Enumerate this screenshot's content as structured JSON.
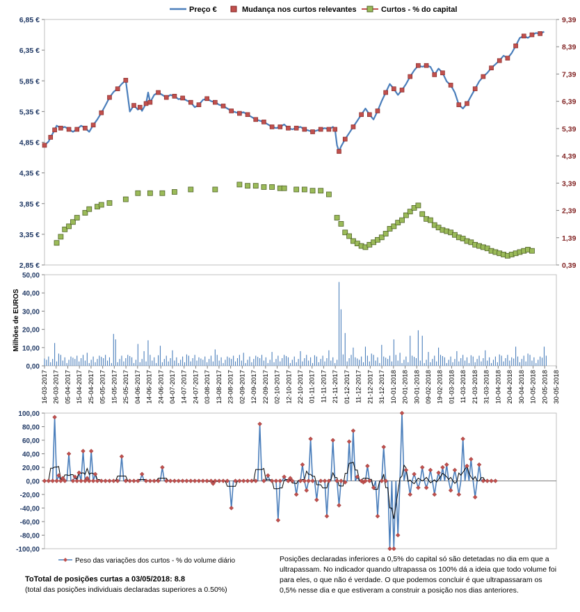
{
  "dates": [
    "16-03-2017",
    "26-03-2017",
    "05-04-2017",
    "15-04-2017",
    "25-04-2017",
    "05-05-2017",
    "15-05-2017",
    "25-05-2017",
    "04-06-2017",
    "14-06-2017",
    "24-06-2017",
    "04-07-2017",
    "14-07-2017",
    "24-07-2017",
    "03-08-2017",
    "13-08-2017",
    "23-08-2017",
    "02-09-2017",
    "12-09-2017",
    "22-09-2017",
    "02-10-2017",
    "12-10-2017",
    "22-10-2017",
    "01-11-2017",
    "11-11-2017",
    "21-11-2017",
    "01-12-2017",
    "11-12-2017",
    "21-12-2017",
    "31-12-2017",
    "10-01-2018",
    "20-01-2018",
    "30-01-2018",
    "09-02-2018",
    "19-02-2018",
    "01-03-2018",
    "11-03-2018",
    "21-03-2018",
    "31-03-2018",
    "10-04-2018",
    "20-04-2018",
    "30-04-2018",
    "10-05-2018",
    "20-05-2018",
    "30-05-2018"
  ],
  "chart_data": [
    {
      "type": "line",
      "legend_position": "top",
      "legend": [
        "Preço €",
        "Mudança nos curtos relevantes",
        "Curtos - % do capital"
      ],
      "colors": {
        "price": "#4a7ebb",
        "change": "#c0504d",
        "shorts_fill": "#9bbb59",
        "shorts_border": "#4f6228"
      },
      "y_left": {
        "ticks": [
          "6,85 €",
          "6,35 €",
          "5,85 €",
          "5,35 €",
          "4,85 €",
          "4,35 €",
          "3,85 €",
          "3,35 €",
          "2,85 €"
        ],
        "min": 2.85,
        "max": 6.85
      },
      "y_right": {
        "ticks": [
          "9,39",
          "8,39",
          "7,39",
          "6,39",
          "5,39",
          "4,39",
          "3,39",
          "2,39",
          "1,39",
          "0,39"
        ],
        "min": 0.39,
        "max": 9.39
      },
      "price_series": [
        [
          0,
          4.8
        ],
        [
          2,
          4.86
        ],
        [
          3,
          4.93
        ],
        [
          4,
          4.99
        ],
        [
          5,
          5.05
        ],
        [
          6,
          5.12
        ],
        [
          8,
          5.08
        ],
        [
          10,
          5.1
        ],
        [
          12,
          5.06
        ],
        [
          14,
          5.02
        ],
        [
          16,
          5.06
        ],
        [
          18,
          5.12
        ],
        [
          20,
          5.08
        ],
        [
          22,
          5.02
        ],
        [
          24,
          5.13
        ],
        [
          26,
          5.22
        ],
        [
          28,
          5.33
        ],
        [
          30,
          5.45
        ],
        [
          32,
          5.58
        ],
        [
          34,
          5.67
        ],
        [
          36,
          5.72
        ],
        [
          38,
          5.8
        ],
        [
          40,
          5.86
        ],
        [
          42,
          5.35
        ],
        [
          44,
          5.45
        ],
        [
          46,
          5.38
        ],
        [
          47,
          5.42
        ],
        [
          48,
          5.36
        ],
        [
          50,
          5.48
        ],
        [
          51,
          5.66
        ],
        [
          52,
          5.5
        ],
        [
          54,
          5.62
        ],
        [
          56,
          5.66
        ],
        [
          58,
          5.62
        ],
        [
          60,
          5.58
        ],
        [
          62,
          5.62
        ],
        [
          64,
          5.6
        ],
        [
          66,
          5.55
        ],
        [
          68,
          5.57
        ],
        [
          70,
          5.53
        ],
        [
          72,
          5.5
        ],
        [
          74,
          5.42
        ],
        [
          76,
          5.46
        ],
        [
          78,
          5.54
        ],
        [
          80,
          5.56
        ],
        [
          82,
          5.52
        ],
        [
          84,
          5.5
        ],
        [
          86,
          5.46
        ],
        [
          88,
          5.44
        ],
        [
          90,
          5.4
        ],
        [
          92,
          5.36
        ],
        [
          94,
          5.34
        ],
        [
          96,
          5.32
        ],
        [
          98,
          5.34
        ],
        [
          100,
          5.3
        ],
        [
          102,
          5.26
        ],
        [
          104,
          5.22
        ],
        [
          106,
          5.2
        ],
        [
          108,
          5.18
        ],
        [
          110,
          5.14
        ],
        [
          112,
          5.1
        ],
        [
          114,
          5.08
        ],
        [
          116,
          5.1
        ],
        [
          118,
          5.14
        ],
        [
          120,
          5.08
        ],
        [
          122,
          5.06
        ],
        [
          124,
          5.08
        ],
        [
          126,
          5.1
        ],
        [
          128,
          5.06
        ],
        [
          130,
          5.04
        ],
        [
          132,
          5.02
        ],
        [
          134,
          5.04
        ],
        [
          136,
          5.06
        ],
        [
          138,
          5.08
        ],
        [
          140,
          5.06
        ],
        [
          142,
          5.1
        ],
        [
          143,
          5.06
        ],
        [
          144,
          4.8
        ],
        [
          145,
          4.7
        ],
        [
          146,
          4.78
        ],
        [
          148,
          4.9
        ],
        [
          150,
          5.0
        ],
        [
          152,
          5.1
        ],
        [
          154,
          5.2
        ],
        [
          156,
          5.3
        ],
        [
          158,
          5.4
        ],
        [
          160,
          5.3
        ],
        [
          162,
          5.22
        ],
        [
          164,
          5.36
        ],
        [
          166,
          5.52
        ],
        [
          168,
          5.66
        ],
        [
          170,
          5.8
        ],
        [
          172,
          5.72
        ],
        [
          174,
          5.62
        ],
        [
          176,
          5.7
        ],
        [
          178,
          5.8
        ],
        [
          180,
          5.92
        ],
        [
          182,
          6.02
        ],
        [
          184,
          6.1
        ],
        [
          186,
          6.08
        ],
        [
          188,
          6.1
        ],
        [
          190,
          6.08
        ],
        [
          192,
          5.95
        ],
        [
          194,
          6.05
        ],
        [
          196,
          5.98
        ],
        [
          198,
          5.84
        ],
        [
          200,
          5.78
        ],
        [
          202,
          5.66
        ],
        [
          204,
          5.46
        ],
        [
          206,
          5.4
        ],
        [
          208,
          5.48
        ],
        [
          210,
          5.6
        ],
        [
          212,
          5.72
        ],
        [
          214,
          5.84
        ],
        [
          216,
          5.92
        ],
        [
          218,
          5.98
        ],
        [
          220,
          6.06
        ],
        [
          222,
          6.12
        ],
        [
          224,
          6.18
        ],
        [
          226,
          6.26
        ],
        [
          228,
          6.22
        ],
        [
          230,
          6.3
        ],
        [
          232,
          6.42
        ],
        [
          234,
          6.55
        ],
        [
          236,
          6.58
        ],
        [
          238,
          6.55
        ],
        [
          240,
          6.6
        ],
        [
          242,
          6.63
        ],
        [
          244,
          6.62
        ],
        [
          246,
          6.65
        ]
      ],
      "change_points": [
        [
          6,
          3.21
        ],
        [
          8,
          3.31
        ],
        [
          10,
          3.43
        ],
        [
          12,
          3.48
        ],
        [
          14,
          3.55
        ],
        [
          16,
          3.62
        ],
        [
          20,
          3.7
        ],
        [
          22,
          3.76
        ],
        [
          26,
          3.8
        ],
        [
          28,
          3.83
        ],
        [
          32,
          3.86
        ],
        [
          40,
          3.92
        ],
        [
          46,
          4.02
        ],
        [
          52,
          4.02
        ],
        [
          58,
          4.02
        ],
        [
          64,
          4.04
        ],
        [
          72,
          4.08
        ],
        [
          84,
          4.08
        ],
        [
          96,
          4.16
        ],
        [
          100,
          4.14
        ],
        [
          104,
          4.14
        ],
        [
          108,
          4.12
        ],
        [
          112,
          4.12
        ],
        [
          116,
          4.1
        ],
        [
          118,
          4.1
        ],
        [
          124,
          4.08
        ],
        [
          128,
          4.08
        ],
        [
          132,
          4.06
        ],
        [
          136,
          4.06
        ],
        [
          140,
          4.0
        ],
        [
          144,
          3.62
        ],
        [
          146,
          3.52
        ],
        [
          148,
          3.38
        ],
        [
          150,
          3.32
        ],
        [
          152,
          3.24
        ],
        [
          154,
          3.2
        ],
        [
          156,
          3.16
        ],
        [
          158,
          3.14
        ],
        [
          160,
          3.18
        ],
        [
          162,
          3.22
        ],
        [
          164,
          3.26
        ],
        [
          166,
          3.3
        ],
        [
          168,
          3.36
        ],
        [
          170,
          3.44
        ],
        [
          172,
          3.48
        ],
        [
          174,
          3.54
        ],
        [
          176,
          3.58
        ],
        [
          178,
          3.66
        ],
        [
          180,
          3.72
        ],
        [
          182,
          3.78
        ],
        [
          184,
          3.82
        ],
        [
          186,
          3.68
        ],
        [
          188,
          3.6
        ],
        [
          190,
          3.58
        ],
        [
          192,
          3.5
        ],
        [
          194,
          3.46
        ],
        [
          196,
          3.42
        ],
        [
          198,
          3.4
        ],
        [
          200,
          3.38
        ],
        [
          202,
          3.34
        ],
        [
          204,
          3.3
        ],
        [
          206,
          3.28
        ],
        [
          208,
          3.24
        ],
        [
          210,
          3.22
        ],
        [
          212,
          3.18
        ],
        [
          214,
          3.16
        ],
        [
          216,
          3.14
        ],
        [
          218,
          3.12
        ],
        [
          220,
          3.08
        ],
        [
          222,
          3.06
        ],
        [
          224,
          3.04
        ],
        [
          226,
          3.02
        ],
        [
          228,
          3.0
        ],
        [
          230,
          3.02
        ],
        [
          232,
          3.04
        ],
        [
          234,
          3.06
        ],
        [
          236,
          3.08
        ],
        [
          238,
          3.1
        ],
        [
          240,
          3.08
        ]
      ]
    },
    {
      "type": "bar",
      "ylabel": "Milhões de EUROS",
      "y_ticks": [
        "50,00",
        "40,00",
        "30,00",
        "20,00",
        "10,00",
        "0,00"
      ],
      "ylim": [
        0,
        50
      ],
      "color": "#4a7ebb",
      "spikes": [
        [
          5,
          12.5
        ],
        [
          34,
          17.5
        ],
        [
          35,
          14.5
        ],
        [
          46,
          12.0
        ],
        [
          51,
          14.0
        ],
        [
          57,
          11.0
        ],
        [
          84,
          9.0
        ],
        [
          145,
          46.0
        ],
        [
          146,
          31.0
        ],
        [
          148,
          18.0
        ],
        [
          152,
          10.0
        ],
        [
          158,
          10.5
        ],
        [
          166,
          11.5
        ],
        [
          172,
          14.5
        ],
        [
          180,
          16.5
        ],
        [
          184,
          19.5
        ],
        [
          186,
          16.5
        ],
        [
          194,
          10.0
        ],
        [
          232,
          10.5
        ],
        [
          246,
          10.5
        ]
      ]
    },
    {
      "type": "line",
      "y_ticks": [
        "100,00",
        "80,00",
        "60,00",
        "40,00",
        "20,00",
        "0,00",
        "-20,00",
        "-40,00",
        "-60,00",
        "-80,00",
        "-100,00"
      ],
      "ylim": [
        -100,
        100
      ],
      "legend_position": "bottom-left",
      "legend": [
        "Peso das variações dos curtos - % do volume diário"
      ],
      "colors": {
        "line": "#4a7ebb",
        "marker": "#c0504d",
        "avg": "#000000"
      },
      "events": [
        [
          5,
          94
        ],
        [
          7,
          8
        ],
        [
          9,
          4
        ],
        [
          12,
          40
        ],
        [
          15,
          6
        ],
        [
          17,
          12
        ],
        [
          19,
          44
        ],
        [
          21,
          4
        ],
        [
          23,
          44
        ],
        [
          25,
          10
        ],
        [
          38,
          36
        ],
        [
          48,
          10
        ],
        [
          58,
          20
        ],
        [
          83,
          -4
        ],
        [
          92,
          -40
        ],
        [
          106,
          84
        ],
        [
          110,
          8
        ],
        [
          115,
          -58
        ],
        [
          118,
          6
        ],
        [
          121,
          4
        ],
        [
          124,
          -20
        ],
        [
          127,
          24
        ],
        [
          129,
          -14
        ],
        [
          131,
          62
        ],
        [
          134,
          -28
        ],
        [
          139,
          -52
        ],
        [
          142,
          60
        ],
        [
          145,
          -36
        ],
        [
          148,
          -2
        ],
        [
          150,
          58
        ],
        [
          152,
          74
        ],
        [
          154,
          6
        ],
        [
          157,
          -2
        ],
        [
          159,
          22
        ],
        [
          162,
          -10
        ],
        [
          164,
          -52
        ],
        [
          167,
          50
        ],
        [
          170,
          -100
        ],
        [
          172,
          -100
        ],
        [
          174,
          -80
        ],
        [
          176,
          100
        ],
        [
          178,
          16
        ],
        [
          180,
          -20
        ],
        [
          182,
          10
        ],
        [
          184,
          -10
        ],
        [
          186,
          20
        ],
        [
          188,
          -10
        ],
        [
          190,
          16
        ],
        [
          192,
          -20
        ],
        [
          194,
          12
        ],
        [
          196,
          20
        ],
        [
          198,
          24
        ],
        [
          200,
          -14
        ],
        [
          202,
          16
        ],
        [
          204,
          -20
        ],
        [
          206,
          62
        ],
        [
          208,
          22
        ],
        [
          210,
          32
        ],
        [
          212,
          -24
        ],
        [
          214,
          24
        ],
        [
          216,
          0
        ]
      ]
    }
  ],
  "notes": {
    "total_line": "ToTotal de posições curtas a 03/05/2018:  8.8",
    "total_sub": "(total das posições individuais declaradas superiores a 0.50%)",
    "explanation": "Posições declaradas inferiores a 0,5% do capital só são detetadas no dia em que a ultrapassam.  No indicador quando ultrapassa os 100% dá a ideia que todo volume foi para eles, o que não é verdade.  O que podemos concluir é que ultrapassaram os 0,5% nesse dia e que estiveram a construir a posição nos dias anteriores."
  }
}
